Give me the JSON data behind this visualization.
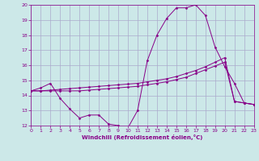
{
  "background_color": "#cce8e8",
  "grid_color": "#aaaacc",
  "line_color": "#880088",
  "xlabel": "Windchill (Refroidissement éolien,°C)",
  "xlim": [
    0,
    23
  ],
  "ylim": [
    12,
    20
  ],
  "xticks": [
    0,
    1,
    2,
    3,
    4,
    5,
    6,
    7,
    8,
    9,
    10,
    11,
    12,
    13,
    14,
    15,
    16,
    17,
    18,
    19,
    20,
    21,
    22,
    23
  ],
  "yticks": [
    12,
    13,
    14,
    15,
    16,
    17,
    18,
    19,
    20
  ],
  "s1_x": [
    0,
    1,
    2,
    3,
    4,
    5,
    6,
    7,
    8,
    9,
    10,
    11,
    12,
    13,
    14,
    15,
    16,
    17,
    18,
    19,
    20,
    21,
    22,
    23
  ],
  "s1_y": [
    14.3,
    14.5,
    14.8,
    13.8,
    13.1,
    12.5,
    12.7,
    12.7,
    12.1,
    12.0,
    11.85,
    13.0,
    16.3,
    18.0,
    19.1,
    19.8,
    19.8,
    20.0,
    19.3,
    17.2,
    15.9,
    14.8,
    13.5,
    13.4
  ],
  "s2_x": [
    0,
    1,
    2,
    3,
    4,
    5,
    6,
    7,
    8,
    9,
    10,
    11,
    12,
    13,
    14,
    15,
    16,
    17,
    18,
    19,
    20,
    21,
    22,
    23
  ],
  "s2_y": [
    14.3,
    14.3,
    14.3,
    14.3,
    14.3,
    14.3,
    14.35,
    14.4,
    14.45,
    14.5,
    14.55,
    14.6,
    14.7,
    14.8,
    14.9,
    15.05,
    15.2,
    15.45,
    15.7,
    15.95,
    16.2,
    13.6,
    13.5,
    13.4
  ],
  "s3_x": [
    0,
    1,
    2,
    3,
    4,
    5,
    6,
    7,
    8,
    9,
    10,
    11,
    12,
    13,
    14,
    15,
    16,
    17,
    18,
    19,
    20,
    21,
    22,
    23
  ],
  "s3_y": [
    14.3,
    14.3,
    14.35,
    14.4,
    14.45,
    14.5,
    14.55,
    14.6,
    14.65,
    14.7,
    14.75,
    14.8,
    14.9,
    15.0,
    15.1,
    15.25,
    15.45,
    15.65,
    15.9,
    16.2,
    16.5,
    13.6,
    13.5,
    13.4
  ]
}
